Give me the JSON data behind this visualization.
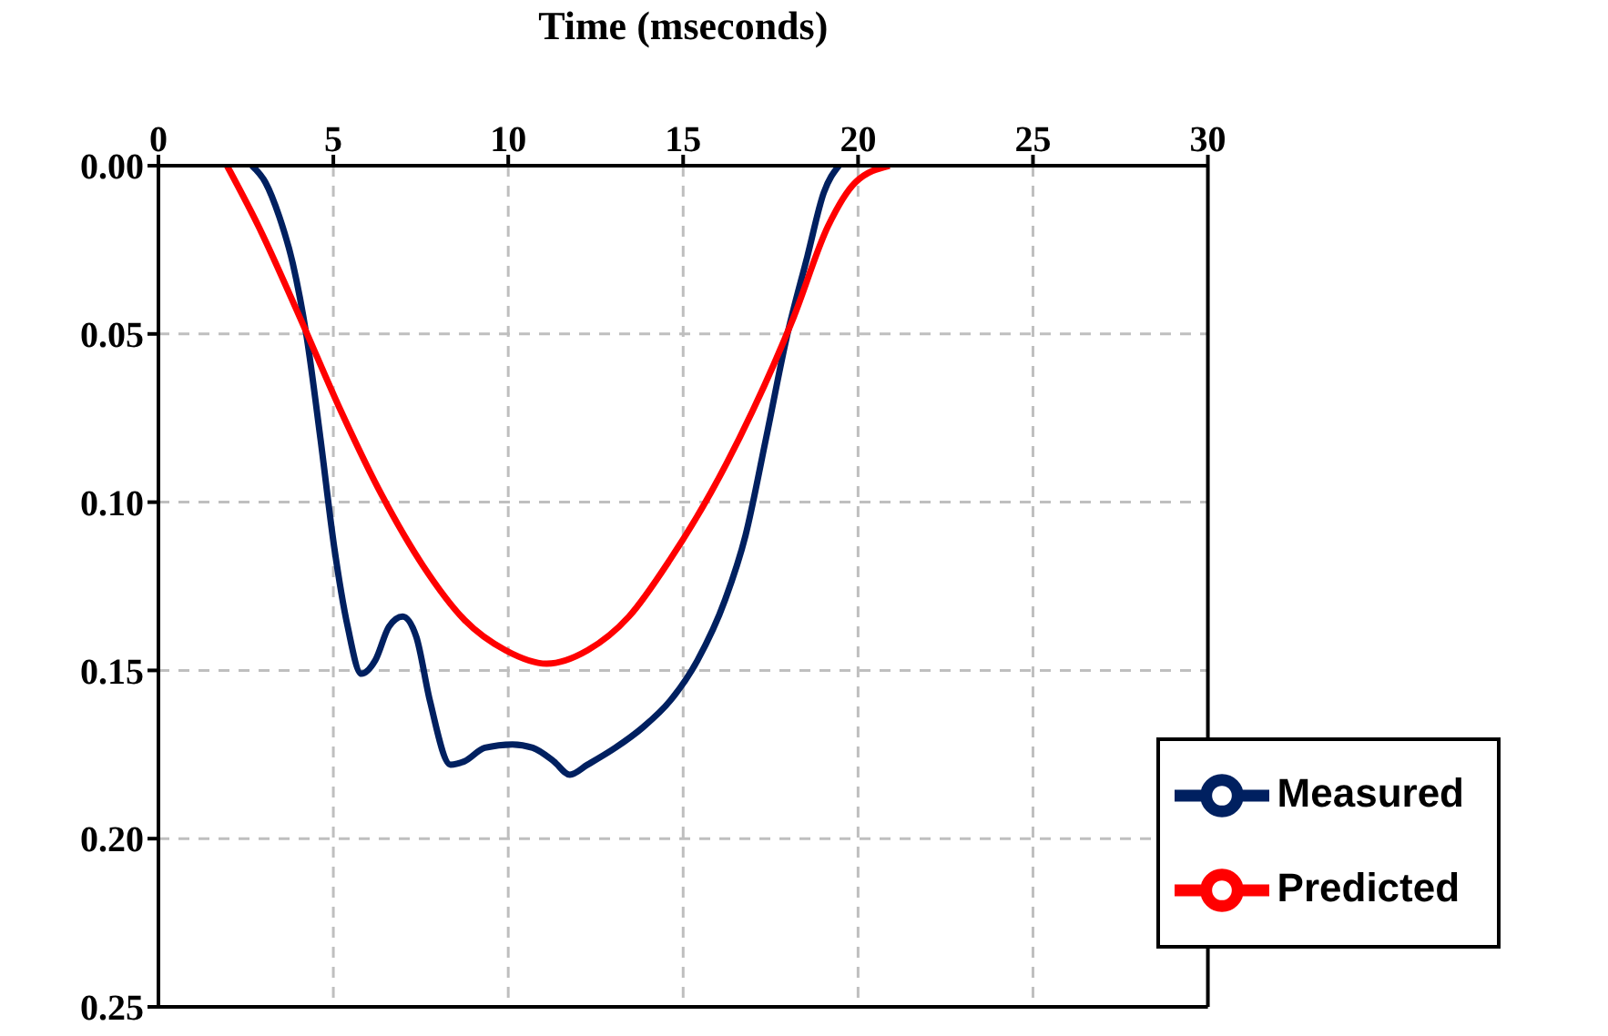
{
  "chart_data": {
    "type": "line",
    "xlabel": "Time (mseconds)",
    "xlim": [
      0,
      30
    ],
    "xticks": [
      0,
      5,
      10,
      15,
      20,
      25,
      30
    ],
    "ylim": [
      0.25,
      0
    ],
    "yticks": [
      {
        "value": 0,
        "label": "0.00"
      },
      {
        "value": 0.05,
        "label": "0.05"
      },
      {
        "value": 0.1,
        "label": "0.10"
      },
      {
        "value": 0.15,
        "label": "0.15"
      },
      {
        "value": 0.2,
        "label": "0.20"
      },
      {
        "value": 0.25,
        "label": "0.25"
      }
    ],
    "grid": true,
    "legend": "bottom right",
    "marker": "none",
    "line_style": "solid",
    "series": [
      {
        "name": "Measured",
        "color": "#002060",
        "x": [
          2.67,
          3.06,
          3.45,
          3.84,
          4.24,
          4.63,
          5.02,
          5.41,
          5.8,
          6.2,
          6.59,
          6.98,
          7.37,
          7.76,
          8.35,
          8.75,
          9.33,
          10.12,
          10.7,
          11.3,
          11.76,
          12.27,
          13.06,
          13.84,
          14.63,
          15.41,
          16.2,
          16.78,
          17.37,
          17.96,
          18.55,
          19.02,
          19.45
        ],
        "values": [
          0,
          0.005,
          0.015,
          0.029,
          0.051,
          0.081,
          0.113,
          0.137,
          0.151,
          0.147,
          0.137,
          0.134,
          0.14,
          0.159,
          0.178,
          0.177,
          0.173,
          0.172,
          0.173,
          0.177,
          0.181,
          0.178,
          0.173,
          0.167,
          0.159,
          0.147,
          0.129,
          0.11,
          0.081,
          0.051,
          0.027,
          0.008,
          0
        ]
      },
      {
        "name": "Predicted",
        "color": "#ff0000",
        "x": [
          1.96,
          2.86,
          4.04,
          5.22,
          6.39,
          7.57,
          8.75,
          9.92,
          11.1,
          12.27,
          13.45,
          14.63,
          15.8,
          16.98,
          18.16,
          19.14,
          19.92,
          20.9
        ],
        "values": [
          0,
          0.018,
          0.045,
          0.073,
          0.098,
          0.119,
          0.135,
          0.144,
          0.148,
          0.144,
          0.134,
          0.117,
          0.097,
          0.073,
          0.045,
          0.018,
          0.005,
          0
        ]
      }
    ]
  }
}
